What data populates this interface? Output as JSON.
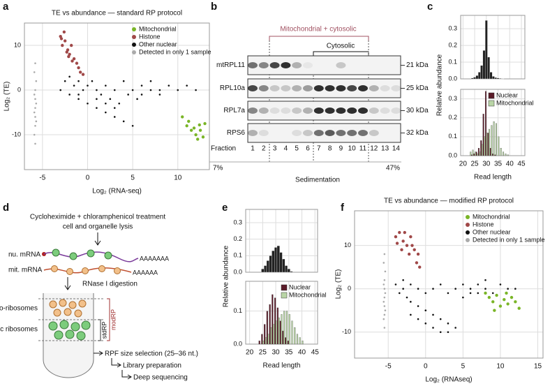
{
  "panel_labels": [
    "a",
    "b",
    "c",
    "d",
    "e",
    "f"
  ],
  "chart_data": [
    {
      "type": "scatter",
      "title": "TE vs abundance — standard RP protocol",
      "x_label": "Log₂ (RNA-seq)",
      "y_label": "Log₂ (TE)",
      "xlim": [
        -7,
        13.5
      ],
      "ylim": [
        -17.8,
        15
      ],
      "xticks": [
        -5,
        0,
        5,
        10
      ],
      "yticks": [
        -10,
        0,
        10
      ],
      "grid": true,
      "legend": "upper right",
      "series": [
        {
          "name": "Mitochondrial",
          "color": "#7ab527",
          "x": [
            10.5,
            11,
            11.5,
            12,
            12.5,
            13,
            12.2,
            11.8,
            12.8,
            11.2,
            12.4
          ],
          "values": [
            -6,
            -8,
            -9,
            -10,
            -9,
            -7.5,
            -11,
            -8.5,
            -10.5,
            -7,
            -7.8
          ]
        },
        {
          "name": "Histone",
          "color": "#a04848",
          "x": [
            -3,
            -2.8,
            -2.5,
            -2.2,
            -2,
            -1.8,
            -1.5,
            -1.2,
            -1,
            -0.8,
            -2.6,
            -2.3,
            -1.7,
            -0.5,
            -2.9,
            -2.1
          ],
          "values": [
            12,
            10,
            11,
            9,
            8,
            10,
            7,
            6,
            5,
            4,
            13,
            8.5,
            6.5,
            3.5,
            11.5,
            7.5
          ]
        },
        {
          "name": "Other nuclear",
          "color": "#111111",
          "x": [
            -3,
            -2.5,
            -2,
            -2,
            -1.5,
            -1,
            -1,
            -0.5,
            0,
            0,
            0.5,
            1,
            1,
            1.5,
            2,
            2,
            2.5,
            3,
            3,
            3.5,
            4,
            4,
            4.5,
            5,
            5,
            5.5,
            6,
            6,
            7,
            7,
            8,
            8,
            9,
            10,
            11,
            12,
            1,
            2,
            3,
            -1
          ],
          "values": [
            0,
            2,
            -1,
            3,
            1,
            -2,
            2,
            0,
            -3,
            1,
            2,
            -4,
            0,
            -1,
            -5,
            1,
            -2,
            -6,
            0,
            -3,
            -7,
            2,
            -1,
            -8,
            0,
            -2,
            -1,
            1,
            0,
            2,
            0,
            -1,
            1,
            0,
            1,
            0,
            -2,
            -3,
            -4,
            -1
          ]
        },
        {
          "name": "Detected in only 1 sample",
          "color": "#aaaaaa",
          "x": [
            -5.8,
            -5.9,
            -5.7,
            -5.8,
            -5.9,
            -5.8,
            -5.7,
            -5.8,
            -5.9,
            -5.8,
            -5.7,
            -5.8,
            -5.9,
            -5.8
          ],
          "values": [
            6,
            4,
            2,
            0,
            -1,
            -2,
            -3,
            -4,
            -5,
            -6,
            -7,
            -8,
            -10,
            -12
          ]
        }
      ]
    },
    {
      "type": "histogram",
      "xlim": [
        19,
        46.5
      ],
      "ylim": [
        0,
        0.38
      ],
      "xticks": [
        20,
        25,
        30,
        35,
        40,
        45
      ],
      "yticks": [
        {
          "value": 0,
          "label": "0.0"
        },
        0.1,
        0.2,
        0.3
      ],
      "grid": true,
      "bins": [
        19.5,
        20.5,
        21.5,
        22.5,
        23.5,
        24.5,
        25.5,
        26.5,
        27.5,
        28.5,
        29.5,
        30.5,
        31.5,
        32.5,
        33.5,
        34.5,
        35.5,
        36.5,
        37.5,
        38.5,
        39.5,
        40.5,
        41.5,
        42.5,
        43.5,
        44.5,
        45.5
      ],
      "series": [
        {
          "color": "#222222",
          "values": [
            0,
            0,
            0,
            0,
            0.005,
            0.01,
            0.02,
            0.04,
            0.08,
            0.17,
            0.35,
            0.13,
            0.04,
            0.015,
            0.008,
            0.005,
            0.003,
            0.002,
            0,
            0,
            0,
            0,
            0,
            0,
            0,
            0
          ]
        }
      ]
    },
    {
      "type": "histogram",
      "x_label": "Read length",
      "y_label": "Relative abundance",
      "xlim": [
        19,
        46.5
      ],
      "ylim": [
        0,
        0.35
      ],
      "xticks": [
        20,
        25,
        30,
        35,
        40,
        45
      ],
      "yticks": [
        {
          "value": 0,
          "label": "0.0"
        },
        0.1,
        0.2,
        0.3
      ],
      "grid": true,
      "legend": "upper right",
      "bins": [
        19.5,
        20.5,
        21.5,
        22.5,
        23.5,
        24.5,
        25.5,
        26.5,
        27.5,
        28.5,
        29.5,
        30.5,
        31.5,
        32.5,
        33.5,
        34.5,
        35.5,
        36.5,
        37.5,
        38.5,
        39.5,
        40.5,
        41.5,
        42.5,
        43.5,
        44.5,
        45.5
      ],
      "series": [
        {
          "name": "Nuclear",
          "color": "#5a1a28",
          "values": [
            0,
            0,
            0,
            0,
            0.005,
            0.01,
            0.02,
            0.04,
            0.08,
            0.22,
            0.34,
            0.12,
            0.04,
            0.01,
            0.005,
            0,
            0,
            0,
            0,
            0,
            0,
            0,
            0,
            0,
            0,
            0
          ]
        },
        {
          "name": "Mitochondrial",
          "color": "#b9d5a6",
          "values": [
            0,
            0,
            0,
            0.02,
            0.03,
            0.02,
            0.01,
            0.02,
            0.06,
            0.1,
            0.12,
            0.14,
            0.16,
            0.18,
            0.17,
            0.1,
            0.04,
            0.02,
            0.01,
            0.005,
            0,
            0,
            0,
            0,
            0,
            0
          ]
        }
      ]
    },
    {
      "type": "histogram",
      "xlim": [
        18.5,
        46
      ],
      "ylim": [
        0,
        0.38
      ],
      "xticks": [
        20,
        25,
        30,
        35,
        40,
        45
      ],
      "yticks": [
        {
          "value": 0,
          "label": "0.0"
        },
        0.1,
        0.2,
        0.3
      ],
      "grid": true,
      "bins": [
        19.5,
        20.5,
        21.5,
        22.5,
        23.5,
        24.5,
        25.5,
        26.5,
        27.5,
        28.5,
        29.5,
        30.5,
        31.5,
        32.5,
        33.5,
        34.5,
        35.5,
        36.5,
        37.5,
        38.5,
        39.5,
        40.5,
        41.5,
        42.5,
        43.5,
        44.5,
        45.5
      ],
      "series": [
        {
          "color": "#222222",
          "values": [
            0,
            0,
            0,
            0,
            0,
            0.02,
            0.04,
            0.07,
            0.1,
            0.13,
            0.15,
            0.16,
            0.12,
            0.08,
            0.04,
            0.02,
            0.005,
            0,
            0,
            0,
            0,
            0,
            0,
            0,
            0,
            0
          ]
        }
      ]
    },
    {
      "type": "histogram",
      "x_label": "Read length",
      "y_label": "Relative abundance",
      "xlim": [
        18.5,
        46
      ],
      "ylim": [
        0,
        0.19
      ],
      "xticks": [
        20,
        25,
        30,
        35,
        40,
        45
      ],
      "yticks": [
        {
          "value": 0,
          "label": "0.0"
        },
        0.1
      ],
      "grid": true,
      "legend": "upper right",
      "bins": [
        19.5,
        20.5,
        21.5,
        22.5,
        23.5,
        24.5,
        25.5,
        26.5,
        27.5,
        28.5,
        29.5,
        30.5,
        31.5,
        32.5,
        33.5,
        34.5,
        35.5,
        36.5,
        37.5,
        38.5,
        39.5,
        40.5,
        41.5,
        42.5,
        43.5,
        44.5,
        45.5
      ],
      "series": [
        {
          "name": "Nuclear",
          "color": "#5a1a28",
          "values": [
            0,
            0,
            0,
            0,
            0.01,
            0.03,
            0.06,
            0.1,
            0.12,
            0.15,
            0.14,
            0.11,
            0.07,
            0.04,
            0.02,
            0.01,
            0,
            0,
            0,
            0,
            0,
            0,
            0,
            0,
            0,
            0
          ]
        },
        {
          "name": "Mitochondrial",
          "color": "#b9d5a6",
          "values": [
            0,
            0,
            0,
            0,
            0,
            0.01,
            0.02,
            0.03,
            0.05,
            0.06,
            0.07,
            0.08,
            0.09,
            0.1,
            0.1,
            0.09,
            0.07,
            0.05,
            0.03,
            0.02,
            0.01,
            0,
            0,
            0,
            0,
            0
          ]
        }
      ]
    },
    {
      "type": "scatter",
      "title": "TE vs abundance — modified RP protocol",
      "x_label": "Log₂ (RNAseq)",
      "y_label": "Log₂ (TE)",
      "xlim": [
        -9.5,
        15.7
      ],
      "ylim": [
        -16,
        18
      ],
      "xticks": [
        -5,
        0,
        5,
        10,
        15
      ],
      "yticks": [
        -10,
        0,
        10
      ],
      "grid": true,
      "legend": "upper right",
      "series": [
        {
          "name": "Mitochondrial",
          "color": "#7ab527",
          "x": [
            8,
            8.5,
            9,
            9.5,
            10,
            10.5,
            11,
            11.5,
            12,
            12.5,
            9.2,
            10.8
          ],
          "values": [
            -1,
            -2,
            -3,
            -1.5,
            -4,
            -2.5,
            -3.5,
            -2,
            -3,
            -4.5,
            -5,
            -1
          ]
        },
        {
          "name": "Histone",
          "color": "#a04848",
          "x": [
            -4,
            -3.5,
            -3,
            -2.5,
            -2,
            -1.5,
            -1,
            -3.8,
            -2.8,
            -2.2,
            -1.2,
            -3.2,
            -0.8,
            -1.8
          ],
          "values": [
            12,
            13,
            11,
            10,
            12,
            9,
            8,
            10.5,
            13,
            8,
            6,
            9,
            5,
            10
          ]
        },
        {
          "name": "Other nuclear",
          "color": "#111111",
          "x": [
            -4,
            -3.5,
            -3,
            -3,
            -2.5,
            -2,
            -2,
            -1,
            -1,
            0,
            0,
            1,
            1,
            2,
            2,
            3,
            3,
            4,
            4,
            5,
            5,
            6,
            6,
            7,
            7,
            8,
            8,
            9,
            10,
            11,
            12,
            -2,
            -1,
            0,
            1,
            2,
            3
          ],
          "values": [
            1,
            -1,
            0,
            2,
            -2,
            1,
            -3,
            0,
            -4,
            -1,
            -5,
            0,
            -6,
            1,
            -7,
            -1,
            -8,
            0,
            -9,
            -2,
            1,
            0,
            -1,
            1,
            -1,
            0,
            2,
            -1,
            1,
            0,
            0,
            -6,
            -7,
            -8,
            -9,
            -10,
            -10
          ]
        },
        {
          "name": "Detected in only 1 sample",
          "color": "#aaaaaa",
          "x": [
            -5.5,
            -5.6,
            -5.4,
            -5.5,
            -5.6,
            -5.5,
            -5.4,
            -5.5,
            -5.6,
            -5.5,
            -5.4,
            -5.5,
            -5.6,
            -5.5
          ],
          "values": [
            8,
            6,
            4,
            2,
            1,
            0,
            -1,
            -2,
            -3,
            -4,
            -5,
            -6,
            -7,
            -9
          ]
        }
      ]
    }
  ],
  "blot": {
    "bracket_outer": "Mitochondrial + cytosolic",
    "bracket_inner": "Cytosolic",
    "rows": [
      {
        "label": "mtRPL11",
        "size": "21 kDa",
        "bands": [
          0.6,
          0.5,
          0.8,
          0.9,
          0.3,
          0.05,
          0,
          0,
          0.2,
          0,
          0,
          0,
          0,
          0
        ]
      },
      {
        "label": "RPL10a",
        "size": "25 kDa",
        "bands": [
          0.8,
          0.5,
          0.2,
          0.2,
          0.3,
          0.4,
          0.9,
          0.9,
          0.9,
          0.8,
          0.9,
          0.3,
          0.1,
          0.1
        ]
      },
      {
        "label": "RPL7a",
        "size": "30 kDa",
        "bands": [
          0.5,
          0.3,
          0.1,
          0.1,
          0.2,
          0.3,
          0.9,
          0.9,
          0.9,
          0.9,
          0.9,
          0.2,
          0.1,
          0.1
        ]
      },
      {
        "label": "RPS6",
        "size": "32 kDa",
        "bands": [
          0.3,
          0.1,
          0,
          0,
          0.1,
          0.2,
          0.6,
          0.7,
          0.6,
          0.6,
          0.6,
          0.2,
          0,
          0
        ]
      }
    ],
    "fraction_label": "Fraction",
    "fractions": [
      "1",
      "2",
      "3",
      "4",
      "5",
      "6",
      "7",
      "8",
      "9",
      "10",
      "11",
      "12",
      "13",
      "14"
    ],
    "gradient_low": "7%",
    "gradient_high": "47%",
    "x_label": "Sedimentation"
  },
  "diagram": {
    "treatment": "Cycloheximide + chloramphenicol treatment",
    "lysis": "cell and organelle lysis",
    "nu_mrna": "nu. mRNA",
    "mit_mrna": "mit. mRNA",
    "nu_polya": "AAAAAAA",
    "mit_polya": "AAAAAA",
    "digestion": "RNase I digestion",
    "mito_ribosomes": "Mito-ribosomes",
    "cyto_ribosomes": "Cytosolic ribosomes",
    "std": "stdRP",
    "mod": "modRP",
    "step1": "RPF size selection (25–36 nt.)",
    "step2": "Library preparation",
    "step3": "Deep sequencing"
  }
}
